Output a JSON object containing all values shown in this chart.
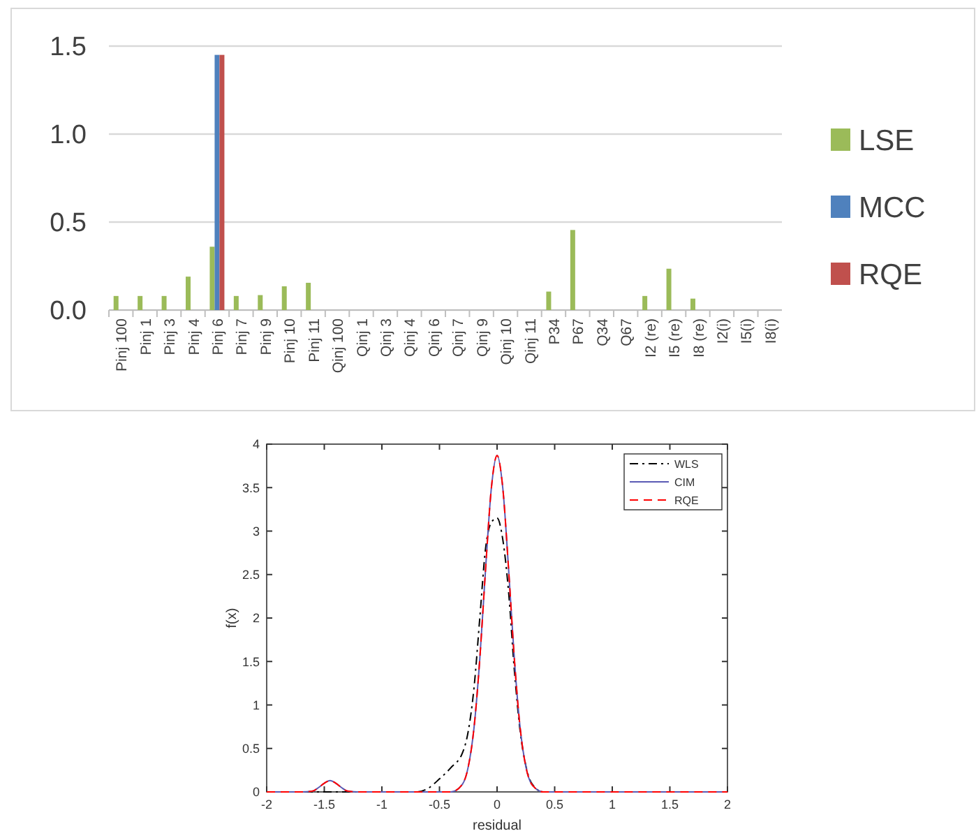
{
  "chart_data": [
    {
      "type": "bar",
      "categories": [
        "Pinj 100",
        "Pinj 1",
        "Pinj 3",
        "Pinj 4",
        "Pinj 6",
        "Pinj 7",
        "Pinj 9",
        "Pinj 10",
        "Pinj 11",
        "Qinj 100",
        "Qinj 1",
        "Qinj 3",
        "Qinj 4",
        "Qinj 6",
        "Qinj 7",
        "Qinj 9",
        "Qinj 10",
        "Qinj 11",
        "P34",
        "P67",
        "Q34",
        "Q67",
        "I2 (re)",
        "I5 (re)",
        "I8 (re)",
        "I2(i)",
        "I5(i)",
        "I8(i)"
      ],
      "series": [
        {
          "name": "LSE",
          "color": "#9bbb59",
          "values": [
            0.08,
            0.08,
            0.08,
            0.19,
            0.36,
            0.08,
            0.085,
            0.135,
            0.155,
            0,
            0,
            0,
            0,
            0,
            0,
            0,
            0,
            0,
            0.105,
            0.455,
            0,
            0,
            0.08,
            0.235,
            0.065,
            0,
            0,
            0
          ]
        },
        {
          "name": "MCC",
          "color": "#4f81bd",
          "values": [
            0,
            0,
            0,
            0,
            1.45,
            0,
            0,
            0,
            0,
            0,
            0,
            0,
            0,
            0,
            0,
            0,
            0,
            0,
            0,
            0,
            0,
            0,
            0,
            0,
            0,
            0,
            0,
            0
          ]
        },
        {
          "name": "RQE",
          "color": "#c0504d",
          "values": [
            0,
            0,
            0,
            0,
            1.45,
            0,
            0,
            0,
            0,
            0,
            0,
            0,
            0,
            0,
            0,
            0,
            0,
            0,
            0,
            0,
            0,
            0,
            0,
            0,
            0,
            0,
            0,
            0
          ]
        }
      ],
      "ylim": [
        0,
        1.5
      ],
      "yticks": [
        {
          "value": 0,
          "label": "0.0"
        },
        {
          "value": 0.5,
          "label": "0.5"
        },
        {
          "value": 1,
          "label": "1.0"
        },
        {
          "value": 1.5,
          "label": "1.5"
        }
      ],
      "grid": "y",
      "legend": "right"
    },
    {
      "type": "line",
      "xlabel": "residual",
      "ylabel": "f(x)",
      "series": [
        {
          "name": "WLS",
          "color": "#000000",
          "line_style": "dashdot",
          "x": [
            -2,
            -0.7,
            -0.6,
            -0.5,
            -0.4,
            -0.3,
            -0.25,
            -0.2,
            -0.15,
            -0.1,
            -0.05,
            0,
            0.05,
            0.1,
            0.15,
            0.2,
            0.25,
            0.3,
            0.4,
            2
          ],
          "values": [
            0,
            0,
            0.04,
            0.15,
            0.28,
            0.45,
            0.7,
            1.2,
            2.0,
            2.8,
            3.1,
            3.15,
            2.9,
            2.3,
            1.4,
            0.7,
            0.3,
            0.1,
            0,
            0
          ]
        },
        {
          "name": "CIM",
          "color": "#5a5ab4",
          "line_style": "solid",
          "x": [
            -2,
            -1.7,
            -1.6,
            -1.55,
            -1.5,
            -1.45,
            -1.4,
            -1.35,
            -1.3,
            -1.2,
            -0.4,
            -0.3,
            -0.25,
            -0.2,
            -0.15,
            -0.1,
            -0.05,
            0,
            0.05,
            0.1,
            0.15,
            0.2,
            0.25,
            0.3,
            0.4,
            2
          ],
          "values": [
            0,
            0,
            0.01,
            0.05,
            0.1,
            0.13,
            0.1,
            0.05,
            0.01,
            0,
            0,
            0.09,
            0.29,
            0.74,
            1.53,
            2.56,
            3.49,
            3.87,
            3.49,
            2.56,
            1.53,
            0.74,
            0.29,
            0.09,
            0,
            0
          ]
        },
        {
          "name": "RQE",
          "color": "#ff0000",
          "line_style": "dashed",
          "x": [
            -2,
            -1.7,
            -1.6,
            -1.55,
            -1.5,
            -1.45,
            -1.4,
            -1.35,
            -1.3,
            -1.2,
            -0.4,
            -0.3,
            -0.25,
            -0.2,
            -0.15,
            -0.1,
            -0.05,
            0,
            0.05,
            0.1,
            0.15,
            0.2,
            0.25,
            0.3,
            0.4,
            2
          ],
          "values": [
            0,
            0,
            0.01,
            0.05,
            0.1,
            0.13,
            0.1,
            0.05,
            0.01,
            0,
            0,
            0.09,
            0.29,
            0.74,
            1.53,
            2.56,
            3.49,
            3.87,
            3.49,
            2.56,
            1.53,
            0.74,
            0.29,
            0.09,
            0,
            0
          ]
        }
      ],
      "xlim": [
        -2,
        2
      ],
      "xticks": [
        -2,
        -1.5,
        -1,
        -0.5,
        0,
        0.5,
        1,
        1.5,
        2
      ],
      "ylim": [
        0,
        4
      ],
      "yticks": [
        0,
        0.5,
        1,
        1.5,
        2,
        2.5,
        3,
        3.5,
        4
      ],
      "grid": false,
      "legend": "top right"
    }
  ]
}
